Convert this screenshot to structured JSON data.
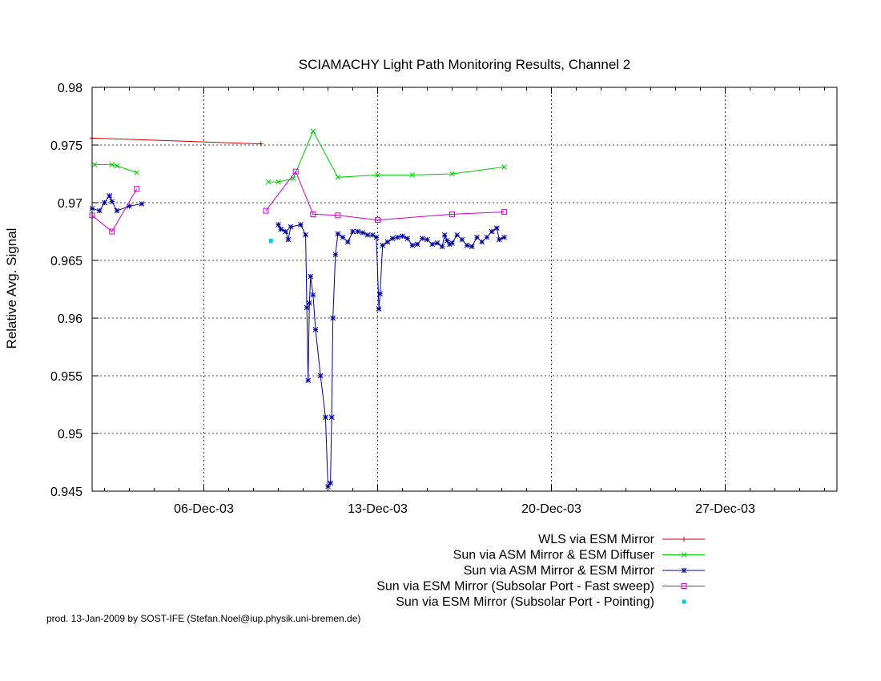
{
  "chart_data": {
    "type": "line",
    "title": "SCIAMACHY Light Path Monitoring Results, Channel 2",
    "xlabel": "",
    "ylabel": "Relative Avg. Signal",
    "x_unit": "day of December 2003",
    "xlim": [
      1.5,
      31.5
    ],
    "ylim": [
      0.945,
      0.98
    ],
    "x_ticks": [
      {
        "value": 6,
        "label": "06-Dec-03"
      },
      {
        "value": 13,
        "label": "13-Dec-03"
      },
      {
        "value": 20,
        "label": "20-Dec-03"
      },
      {
        "value": 27,
        "label": "27-Dec-03"
      }
    ],
    "y_ticks": [
      {
        "value": 0.945,
        "label": "0.945"
      },
      {
        "value": 0.95,
        "label": "0.95"
      },
      {
        "value": 0.955,
        "label": "0.955"
      },
      {
        "value": 0.96,
        "label": "0.96"
      },
      {
        "value": 0.965,
        "label": "0.965"
      },
      {
        "value": 0.97,
        "label": "0.97"
      },
      {
        "value": 0.975,
        "label": "0.975"
      },
      {
        "value": 0.98,
        "label": "0.98"
      }
    ],
    "grid": true,
    "legend_position": "bottom-right",
    "series": [
      {
        "name": "WLS via ESM Mirror",
        "color": "#cc0000",
        "marker": "plus",
        "segments": [
          [
            [
              1.5,
              0.9756
            ],
            [
              8.3,
              0.9751
            ]
          ]
        ]
      },
      {
        "name": "Sun via ASM Mirror & ESM Diffuser",
        "color": "#00cc00",
        "marker": "x",
        "segments": [
          [
            [
              1.6,
              0.9733
            ],
            [
              2.3,
              0.9733
            ],
            [
              2.5,
              0.9732
            ],
            [
              3.3,
              0.9726
            ]
          ],
          [
            [
              8.6,
              0.9718
            ],
            [
              9.0,
              0.9718
            ],
            [
              9.6,
              0.9721
            ],
            [
              10.4,
              0.9762
            ],
            [
              11.4,
              0.9722
            ],
            [
              13.0,
              0.9724
            ],
            [
              14.4,
              0.9724
            ],
            [
              16.0,
              0.9725
            ],
            [
              18.1,
              0.9731
            ]
          ]
        ]
      },
      {
        "name": "Sun via ASM Mirror & ESM Mirror",
        "color": "#000099",
        "marker": "star",
        "segments": [
          [
            [
              1.5,
              0.9695
            ],
            [
              1.8,
              0.9693
            ],
            [
              2.0,
              0.97
            ],
            [
              2.2,
              0.9706
            ],
            [
              2.3,
              0.9701
            ],
            [
              2.5,
              0.9693
            ],
            [
              3.0,
              0.9697
            ],
            [
              3.5,
              0.9699
            ]
          ],
          [
            [
              9.0,
              0.9681
            ],
            [
              9.1,
              0.9677
            ],
            [
              9.3,
              0.9675
            ],
            [
              9.4,
              0.9668
            ],
            [
              9.5,
              0.9679
            ],
            [
              9.9,
              0.9681
            ],
            [
              10.1,
              0.9672
            ],
            [
              10.15,
              0.9609
            ],
            [
              10.2,
              0.9546
            ],
            [
              10.25,
              0.9613
            ],
            [
              10.3,
              0.9636
            ],
            [
              10.4,
              0.962
            ],
            [
              10.5,
              0.959
            ],
            [
              10.7,
              0.955
            ],
            [
              10.9,
              0.9514
            ],
            [
              11.0,
              0.9454
            ],
            [
              11.1,
              0.9457
            ],
            [
              11.15,
              0.9514
            ],
            [
              11.2,
              0.96
            ],
            [
              11.3,
              0.9655
            ],
            [
              11.4,
              0.9673
            ],
            [
              11.6,
              0.967
            ],
            [
              11.8,
              0.9666
            ],
            [
              12.0,
              0.9675
            ],
            [
              12.2,
              0.9675
            ],
            [
              12.4,
              0.9674
            ],
            [
              12.6,
              0.9672
            ],
            [
              12.8,
              0.9672
            ],
            [
              12.95,
              0.967
            ],
            [
              13.05,
              0.9608
            ],
            [
              13.1,
              0.9621
            ],
            [
              13.2,
              0.9663
            ],
            [
              13.4,
              0.9666
            ],
            [
              13.6,
              0.9669
            ],
            [
              13.8,
              0.967
            ],
            [
              14.0,
              0.9671
            ],
            [
              14.2,
              0.9669
            ],
            [
              14.4,
              0.9663
            ],
            [
              14.6,
              0.9664
            ],
            [
              14.8,
              0.9669
            ],
            [
              15.0,
              0.9668
            ],
            [
              15.2,
              0.9664
            ],
            [
              15.4,
              0.9665
            ],
            [
              15.6,
              0.9662
            ],
            [
              15.7,
              0.9672
            ],
            [
              15.8,
              0.9667
            ],
            [
              15.9,
              0.9664
            ],
            [
              16.0,
              0.9665
            ],
            [
              16.2,
              0.9672
            ],
            [
              16.4,
              0.9668
            ],
            [
              16.6,
              0.9663
            ],
            [
              16.8,
              0.9662
            ],
            [
              17.0,
              0.967
            ],
            [
              17.2,
              0.9666
            ],
            [
              17.4,
              0.967
            ],
            [
              17.6,
              0.9675
            ],
            [
              17.8,
              0.9678
            ],
            [
              17.9,
              0.9668
            ],
            [
              18.1,
              0.967
            ]
          ]
        ]
      },
      {
        "name": "Sun via ESM Mirror (Subsolar Port - Fast sweep)",
        "color": "#cc00cc",
        "marker": "square",
        "segments": [
          [
            [
              1.5,
              0.9689
            ],
            [
              2.3,
              0.9675
            ],
            [
              3.3,
              0.9712
            ]
          ],
          [
            [
              8.5,
              0.9693
            ],
            [
              9.7,
              0.9727
            ],
            [
              10.4,
              0.969
            ],
            [
              11.4,
              0.9689
            ],
            [
              13.0,
              0.9685
            ],
            [
              16.0,
              0.969
            ],
            [
              18.1,
              0.9692
            ]
          ]
        ]
      },
      {
        "name": "Sun via ESM Mirror (Subsolar Port - Pointing)",
        "color": "#00ccdd",
        "marker": "dot",
        "points_only": true,
        "segments": [
          [
            [
              8.7,
              0.9667
            ]
          ]
        ]
      }
    ]
  },
  "footer": "prod. 13-Jan-2009 by SOST-IFE (Stefan.Noel@iup.physik.uni-bremen.de)"
}
